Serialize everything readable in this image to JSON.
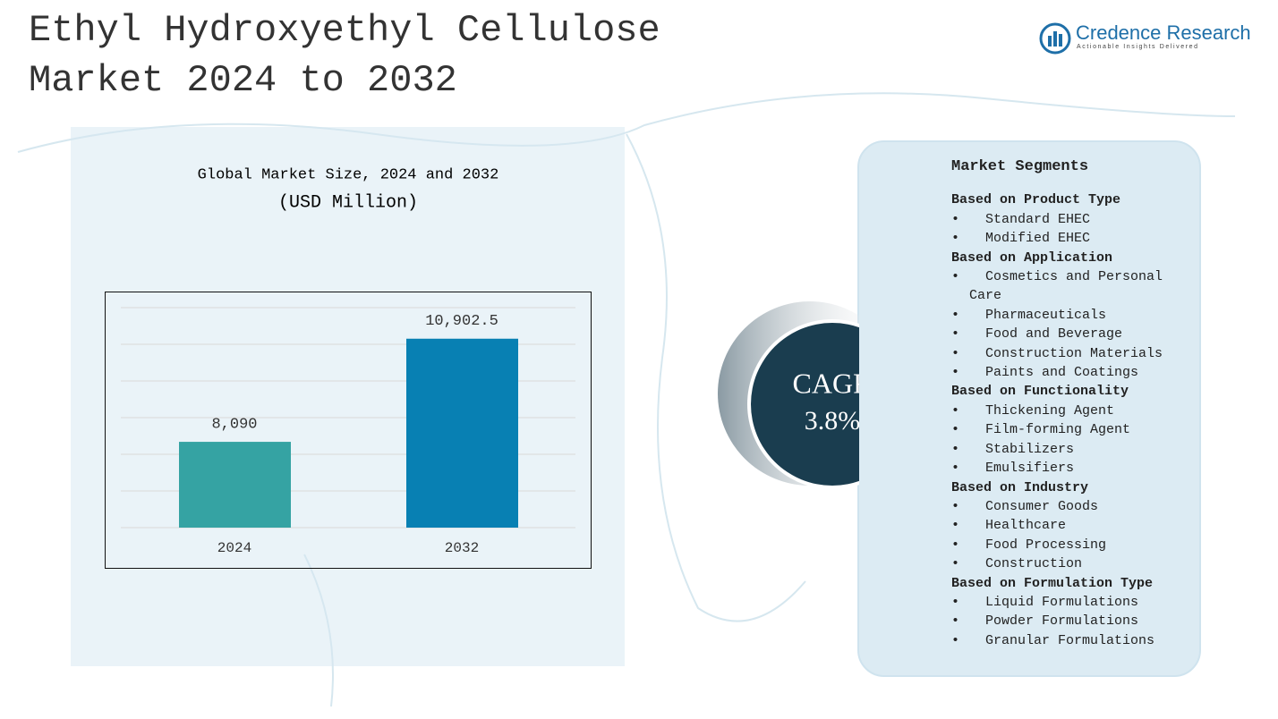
{
  "title": "Ethyl Hydroxyethyl Cellulose Market 2024 to 2032",
  "logo": {
    "name": "Credence Research",
    "tagline": "Actionable Insights Delivered"
  },
  "chart_data": {
    "type": "bar",
    "title": "Global Market Size, 2024 and 2032",
    "subtitle": "(USD Million)",
    "categories": [
      "2024",
      "2032"
    ],
    "values": [
      8090,
      10902.5
    ],
    "value_labels": [
      "8,090",
      "10,902.5"
    ],
    "colors": [
      "#35a3a3",
      "#0880b3"
    ],
    "ylim": [
      5750,
      11750
    ],
    "grid": true
  },
  "cagr": {
    "label": "CAGR",
    "value": "3.8%"
  },
  "segments": {
    "title": "Market Segments",
    "groups": [
      {
        "name": "Based on Product Type",
        "items": [
          "Standard EHEC",
          "Modified EHEC"
        ]
      },
      {
        "name": "Based on Application",
        "items": [
          "Cosmetics and Personal Care",
          "Pharmaceuticals",
          "Food and Beverage",
          "Construction Materials",
          "Paints and Coatings"
        ]
      },
      {
        "name": "Based on Functionality",
        "items": [
          "Thickening Agent",
          "Film-forming Agent",
          "Stabilizers",
          "Emulsifiers"
        ]
      },
      {
        "name": "Based on Industry",
        "items": [
          "Consumer Goods",
          "Healthcare",
          "Food Processing",
          "Construction"
        ]
      },
      {
        "name": "Based on Formulation Type",
        "items": [
          "Liquid Formulations",
          "Powder Formulations",
          "Granular Formulations"
        ]
      }
    ]
  }
}
